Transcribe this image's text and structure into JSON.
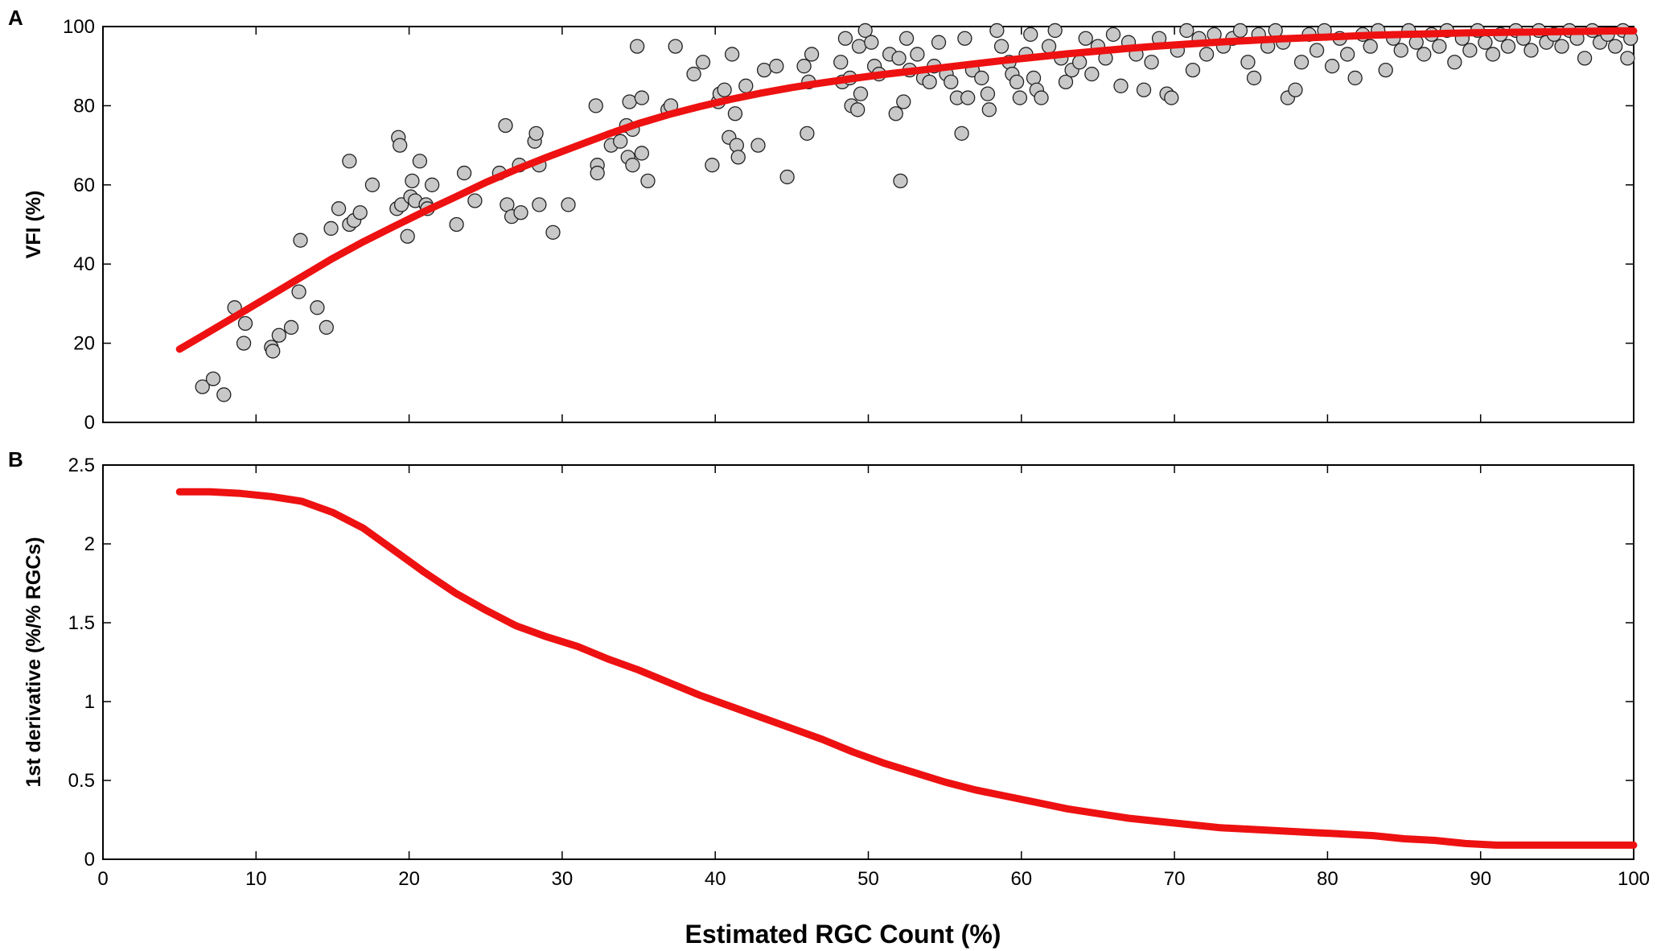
{
  "colors": {
    "curve": "#ee1111",
    "marker_fill": "#c8c8c8",
    "marker_edge": "#222222",
    "axes": "#000000"
  },
  "xlabel": "Estimated RGC Count (%)",
  "chart_data": [
    {
      "panel": "A",
      "type": "scatter",
      "ylabel": "VFI (%)",
      "xlim": [
        0,
        100
      ],
      "ylim": [
        0,
        100
      ],
      "xticks": [
        "0",
        "10",
        "20",
        "30",
        "40",
        "50",
        "60",
        "70",
        "80",
        "90",
        "100"
      ],
      "yticks": [
        "0",
        "20",
        "40",
        "60",
        "80",
        "100"
      ],
      "fit_curve": {
        "x": [
          5,
          7,
          9,
          11,
          13,
          15,
          17,
          19,
          21,
          23,
          25,
          27,
          29,
          31,
          33,
          35,
          37,
          39,
          41,
          43,
          45,
          47,
          49,
          51,
          53,
          55,
          57,
          59,
          61,
          63,
          65,
          67,
          69,
          71,
          73,
          75,
          77,
          79,
          81,
          83,
          85,
          87,
          89,
          91,
          93,
          95,
          97,
          99,
          100
        ],
        "y": [
          18.5,
          23,
          27.6,
          32.2,
          36.8,
          41.4,
          45.6,
          49.5,
          53.3,
          56.9,
          60.6,
          63.9,
          67,
          69.9,
          72.8,
          75.5,
          77.8,
          79.8,
          81.6,
          83.2,
          84.6,
          85.8,
          86.9,
          87.9,
          88.8,
          89.7,
          90.6,
          91.5,
          92.3,
          93.1,
          93.8,
          94.5,
          95.1,
          95.6,
          96.1,
          96.5,
          96.9,
          97.2,
          97.5,
          97.8,
          98,
          98.2,
          98.4,
          98.5,
          98.6,
          98.7,
          98.8,
          98.9,
          98.9
        ]
      },
      "points": [
        [
          6.5,
          9
        ],
        [
          7.2,
          11
        ],
        [
          7.9,
          7
        ],
        [
          8.6,
          29
        ],
        [
          9.3,
          25
        ],
        [
          9.2,
          20
        ],
        [
          11,
          19
        ],
        [
          11.1,
          18
        ],
        [
          11.5,
          22
        ],
        [
          12.3,
          24
        ],
        [
          12.8,
          33
        ],
        [
          12.9,
          46
        ],
        [
          14,
          29
        ],
        [
          14.6,
          24
        ],
        [
          14.9,
          49
        ],
        [
          15.4,
          54
        ],
        [
          16.1,
          66
        ],
        [
          16.1,
          50
        ],
        [
          16.4,
          51
        ],
        [
          16.8,
          53
        ],
        [
          17.6,
          60
        ],
        [
          19.2,
          54
        ],
        [
          19.3,
          72
        ],
        [
          19.4,
          70
        ],
        [
          19.5,
          55
        ],
        [
          19.9,
          47
        ],
        [
          20.1,
          57
        ],
        [
          20.2,
          61
        ],
        [
          20.4,
          56
        ],
        [
          20.7,
          66
        ],
        [
          21.1,
          55
        ],
        [
          21.2,
          54
        ],
        [
          21.5,
          60
        ],
        [
          23.1,
          50
        ],
        [
          23.6,
          63
        ],
        [
          24.3,
          56
        ],
        [
          25.9,
          63
        ],
        [
          26.3,
          75
        ],
        [
          26.4,
          55
        ],
        [
          26.7,
          52
        ],
        [
          27.2,
          65
        ],
        [
          27.3,
          53
        ],
        [
          28.2,
          71
        ],
        [
          28.3,
          73
        ],
        [
          28.5,
          65
        ],
        [
          28.5,
          55
        ],
        [
          29.4,
          48
        ],
        [
          30.4,
          55
        ],
        [
          32.2,
          80
        ],
        [
          32.3,
          65
        ],
        [
          32.3,
          63
        ],
        [
          33.2,
          70
        ],
        [
          33.8,
          71
        ],
        [
          34.2,
          75
        ],
        [
          34.4,
          81
        ],
        [
          34.3,
          67
        ],
        [
          34.6,
          74
        ],
        [
          34.9,
          95
        ],
        [
          34.6,
          65
        ],
        [
          35.2,
          82
        ],
        [
          35.2,
          68
        ],
        [
          35.6,
          61
        ],
        [
          36.9,
          79
        ],
        [
          37.1,
          80
        ],
        [
          37.4,
          95
        ],
        [
          38.6,
          88
        ],
        [
          39.2,
          91
        ],
        [
          39.8,
          65
        ],
        [
          40.2,
          81
        ],
        [
          40.3,
          83
        ],
        [
          40.6,
          84
        ],
        [
          40.9,
          72
        ],
        [
          41.1,
          93
        ],
        [
          41.3,
          78
        ],
        [
          41.4,
          70
        ],
        [
          41.5,
          67
        ],
        [
          42,
          85
        ],
        [
          42.8,
          70
        ],
        [
          43.2,
          89
        ],
        [
          44,
          90
        ],
        [
          44.7,
          62
        ],
        [
          46,
          73
        ],
        [
          46.3,
          93
        ],
        [
          45.8,
          90
        ],
        [
          46.1,
          86
        ],
        [
          48.2,
          91
        ],
        [
          48.3,
          86
        ],
        [
          48.5,
          97
        ],
        [
          48.9,
          80
        ],
        [
          49.3,
          79
        ],
        [
          49.4,
          95
        ],
        [
          49.5,
          83
        ],
        [
          49.8,
          99
        ],
        [
          48.8,
          87
        ],
        [
          50.2,
          96
        ],
        [
          50.4,
          90
        ],
        [
          50.7,
          88
        ],
        [
          51.4,
          93
        ],
        [
          51.8,
          78
        ],
        [
          52,
          92
        ],
        [
          52.3,
          81
        ],
        [
          52.1,
          61
        ],
        [
          52.5,
          97
        ],
        [
          52.7,
          89
        ],
        [
          53.2,
          93
        ],
        [
          53.6,
          87
        ],
        [
          54,
          86
        ],
        [
          54.3,
          90
        ],
        [
          54.6,
          96
        ],
        [
          55.1,
          88
        ],
        [
          55.4,
          86
        ],
        [
          55.8,
          82
        ],
        [
          56.1,
          73
        ],
        [
          56.3,
          97
        ],
        [
          56.5,
          82
        ],
        [
          56.8,
          89
        ],
        [
          57.4,
          87
        ],
        [
          57.8,
          83
        ],
        [
          57.9,
          79
        ],
        [
          58.4,
          99
        ],
        [
          58.7,
          95
        ],
        [
          59.2,
          91
        ],
        [
          59.4,
          88
        ],
        [
          59.7,
          86
        ],
        [
          59.9,
          82
        ],
        [
          60.3,
          93
        ],
        [
          60.6,
          98
        ],
        [
          60.8,
          87
        ],
        [
          61,
          84
        ],
        [
          61.3,
          82
        ],
        [
          61.8,
          95
        ],
        [
          62.2,
          99
        ],
        [
          62.6,
          92
        ],
        [
          62.9,
          86
        ],
        [
          63.3,
          89
        ],
        [
          63.8,
          91
        ],
        [
          64.2,
          97
        ],
        [
          64.6,
          88
        ],
        [
          65,
          95
        ],
        [
          65.5,
          92
        ],
        [
          66,
          98
        ],
        [
          66.5,
          85
        ],
        [
          67,
          96
        ],
        [
          67.5,
          93
        ],
        [
          68,
          84
        ],
        [
          68.5,
          91
        ],
        [
          69,
          97
        ],
        [
          69.5,
          83
        ],
        [
          69.8,
          82
        ],
        [
          70.2,
          94
        ],
        [
          70.8,
          99
        ],
        [
          71.2,
          89
        ],
        [
          71.6,
          97
        ],
        [
          72.1,
          93
        ],
        [
          72.6,
          98
        ],
        [
          73.2,
          95
        ],
        [
          73.8,
          97
        ],
        [
          74.3,
          99
        ],
        [
          74.8,
          91
        ],
        [
          75.2,
          87
        ],
        [
          75.5,
          98
        ],
        [
          76.1,
          95
        ],
        [
          76.6,
          99
        ],
        [
          77.1,
          96
        ],
        [
          77.4,
          82
        ],
        [
          77.9,
          84
        ],
        [
          78.3,
          91
        ],
        [
          78.8,
          98
        ],
        [
          79.3,
          94
        ],
        [
          79.8,
          99
        ],
        [
          80.3,
          90
        ],
        [
          80.8,
          97
        ],
        [
          81.3,
          93
        ],
        [
          81.8,
          87
        ],
        [
          82.3,
          98
        ],
        [
          82.8,
          95
        ],
        [
          83.3,
          99
        ],
        [
          83.8,
          89
        ],
        [
          84.3,
          97
        ],
        [
          84.8,
          94
        ],
        [
          85.3,
          99
        ],
        [
          85.8,
          96
        ],
        [
          86.3,
          93
        ],
        [
          86.8,
          98
        ],
        [
          87.3,
          95
        ],
        [
          87.8,
          99
        ],
        [
          88.3,
          91
        ],
        [
          88.8,
          97
        ],
        [
          89.3,
          94
        ],
        [
          89.8,
          99
        ],
        [
          90.3,
          96
        ],
        [
          90.8,
          93
        ],
        [
          91.3,
          98
        ],
        [
          91.8,
          95
        ],
        [
          92.3,
          99
        ],
        [
          92.8,
          97
        ],
        [
          93.3,
          94
        ],
        [
          93.8,
          99
        ],
        [
          94.3,
          96
        ],
        [
          94.8,
          98
        ],
        [
          95.3,
          95
        ],
        [
          95.8,
          99
        ],
        [
          96.3,
          97
        ],
        [
          96.8,
          92
        ],
        [
          97.3,
          99
        ],
        [
          97.8,
          96
        ],
        [
          98.3,
          98
        ],
        [
          98.8,
          95
        ],
        [
          99.3,
          99
        ],
        [
          99.6,
          92
        ],
        [
          99.8,
          97
        ]
      ]
    },
    {
      "panel": "B",
      "type": "line",
      "ylabel": "1st derivative (%/% RGCs)",
      "xlim": [
        0,
        100
      ],
      "ylim": [
        0,
        2.5
      ],
      "xticks": [
        "0",
        "10",
        "20",
        "30",
        "40",
        "50",
        "60",
        "70",
        "80",
        "90",
        "100"
      ],
      "yticks": [
        "0",
        "0.5",
        "1",
        "1.5",
        "2",
        "2.5"
      ],
      "series": [
        {
          "name": "1st derivative",
          "x": [
            5,
            7,
            9,
            11,
            13,
            15,
            17,
            19,
            21,
            23,
            25,
            27,
            29,
            31,
            33,
            35,
            37,
            39,
            41,
            43,
            45,
            47,
            49,
            51,
            53,
            55,
            57,
            59,
            61,
            63,
            65,
            67,
            69,
            71,
            73,
            75,
            77,
            79,
            81,
            83,
            85,
            87,
            89,
            91,
            93,
            95,
            97,
            99,
            100
          ],
          "y": [
            2.33,
            2.33,
            2.32,
            2.3,
            2.27,
            2.2,
            2.1,
            1.96,
            1.82,
            1.69,
            1.58,
            1.48,
            1.41,
            1.35,
            1.27,
            1.2,
            1.12,
            1.04,
            0.97,
            0.9,
            0.83,
            0.76,
            0.68,
            0.61,
            0.55,
            0.49,
            0.44,
            0.4,
            0.36,
            0.32,
            0.29,
            0.26,
            0.24,
            0.22,
            0.2,
            0.19,
            0.18,
            0.17,
            0.16,
            0.15,
            0.13,
            0.12,
            0.1,
            0.09,
            0.09,
            0.09,
            0.09,
            0.09,
            0.09
          ]
        }
      ]
    }
  ]
}
